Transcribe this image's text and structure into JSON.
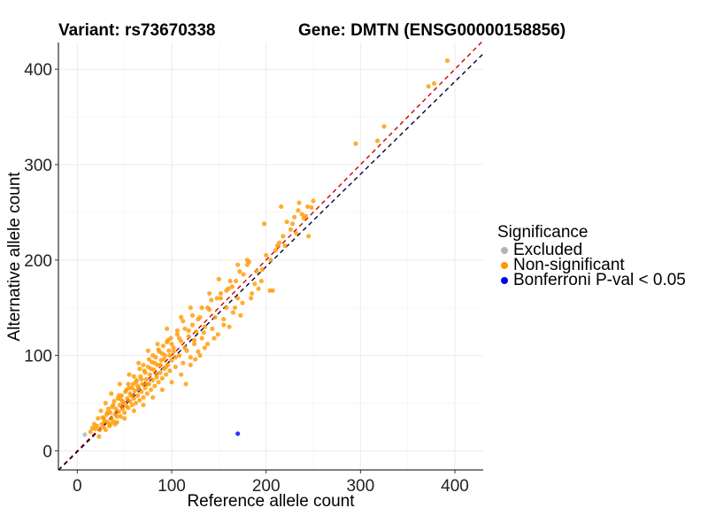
{
  "header": {
    "variant_title": "Variant: rs73670338",
    "gene_title": "Gene: DMTN (ENSG00000158856)"
  },
  "legend": {
    "title": "Significance",
    "items": [
      {
        "label": "Excluded",
        "color": "#b3b3b3"
      },
      {
        "label": "Non-significant",
        "color": "#ff9900"
      },
      {
        "label": "Bonferroni P-val < 0.05",
        "color": "#0000ff"
      }
    ]
  },
  "chart_data": {
    "type": "scatter",
    "xlabel": "Reference allele count",
    "ylabel": "Alternative allele count",
    "xlim": [
      -20,
      430
    ],
    "ylim": [
      -20,
      428
    ],
    "xticks": [
      "0",
      "100",
      "200",
      "300",
      "400"
    ],
    "yticks": [
      "0",
      "100",
      "200",
      "300",
      "400"
    ],
    "grid": true,
    "reference_lines": [
      {
        "name": "identity (y = x)",
        "color": "#cc0000",
        "style": "dashed",
        "slope": 1.0,
        "intercept": 0
      },
      {
        "name": "fitted",
        "color": "#000033",
        "style": "dashed",
        "slope": 0.97,
        "intercept": -1
      }
    ],
    "series": [
      {
        "name": "Excluded",
        "color": "#b3b3b3",
        "points": [
          [
            8,
            17
          ]
        ]
      },
      {
        "name": "Bonferroni P-val < 0.05",
        "color": "#0000ff",
        "points": [
          [
            170,
            18
          ]
        ]
      },
      {
        "name": "Non-significant",
        "color": "#ff9900",
        "points": [
          [
            14,
            20
          ],
          [
            16,
            24
          ],
          [
            19,
            23
          ],
          [
            21,
            26
          ],
          [
            23,
            15
          ],
          [
            24,
            22
          ],
          [
            26,
            28
          ],
          [
            27,
            35
          ],
          [
            28,
            25
          ],
          [
            29,
            31
          ],
          [
            30,
            22
          ],
          [
            31,
            38
          ],
          [
            32,
            30
          ],
          [
            33,
            44
          ],
          [
            34,
            26
          ],
          [
            35,
            40
          ],
          [
            36,
            34
          ],
          [
            37,
            46
          ],
          [
            38,
            31
          ],
          [
            39,
            52
          ],
          [
            40,
            38
          ],
          [
            41,
            44
          ],
          [
            42,
            30
          ],
          [
            43,
            55
          ],
          [
            44,
            41
          ],
          [
            45,
            48
          ],
          [
            46,
            36
          ],
          [
            47,
            58
          ],
          [
            48,
            44
          ],
          [
            49,
            50
          ],
          [
            50,
            40
          ],
          [
            51,
            62
          ],
          [
            52,
            47
          ],
          [
            53,
            55
          ],
          [
            54,
            45
          ],
          [
            55,
            66
          ],
          [
            56,
            52
          ],
          [
            57,
            58
          ],
          [
            58,
            48
          ],
          [
            59,
            70
          ],
          [
            60,
            55
          ],
          [
            61,
            63
          ],
          [
            62,
            50
          ],
          [
            63,
            74
          ],
          [
            64,
            58
          ],
          [
            65,
            66
          ],
          [
            66,
            53
          ],
          [
            67,
            78
          ],
          [
            68,
            62
          ],
          [
            69,
            70
          ],
          [
            70,
            56
          ],
          [
            71,
            84
          ],
          [
            72,
            66
          ],
          [
            73,
            75
          ],
          [
            74,
            60
          ],
          [
            75,
            88
          ],
          [
            76,
            70
          ],
          [
            77,
            80
          ],
          [
            78,
            64
          ],
          [
            79,
            93
          ],
          [
            80,
            74
          ],
          [
            81,
            85
          ],
          [
            82,
            68
          ],
          [
            83,
            98
          ],
          [
            84,
            77
          ],
          [
            85,
            90
          ],
          [
            86,
            72
          ],
          [
            87,
            104
          ],
          [
            88,
            82
          ],
          [
            89,
            95
          ],
          [
            90,
            76
          ],
          [
            91,
            110
          ],
          [
            92,
            86
          ],
          [
            93,
            100
          ],
          [
            94,
            80
          ],
          [
            95,
            114
          ],
          [
            96,
            90
          ],
          [
            97,
            105
          ],
          [
            98,
            84
          ],
          [
            99,
            118
          ],
          [
            100,
            95
          ],
          [
            102,
            108
          ],
          [
            104,
            88
          ],
          [
            106,
            122
          ],
          [
            108,
            100
          ],
          [
            110,
            115
          ],
          [
            112,
            92
          ],
          [
            114,
            128
          ],
          [
            116,
            105
          ],
          [
            118,
            120
          ],
          [
            120,
            98
          ],
          [
            122,
            132
          ],
          [
            124,
            112
          ],
          [
            126,
            125
          ],
          [
            128,
            104
          ],
          [
            130,
            140
          ],
          [
            132,
            118
          ],
          [
            135,
            130
          ],
          [
            138,
            112
          ],
          [
            140,
            148
          ],
          [
            143,
            128
          ],
          [
            146,
            140
          ],
          [
            149,
            122
          ],
          [
            152,
            160
          ],
          [
            155,
            138
          ],
          [
            158,
            150
          ],
          [
            161,
            130
          ],
          [
            164,
            172
          ],
          [
            167,
            150
          ],
          [
            170,
            160
          ],
          [
            173,
            142
          ],
          [
            176,
            185
          ],
          [
            180,
            195
          ],
          [
            184,
            160
          ],
          [
            188,
            175
          ],
          [
            192,
            170
          ],
          [
            196,
            190
          ],
          [
            200,
            205
          ],
          [
            204,
            168
          ],
          [
            207,
            168
          ],
          [
            210,
            210
          ],
          [
            214,
            218
          ],
          [
            218,
            225
          ],
          [
            222,
            240
          ],
          [
            226,
            232
          ],
          [
            230,
            245
          ],
          [
            234,
            252
          ],
          [
            238,
            248
          ],
          [
            242,
            246
          ],
          [
            245,
            225
          ],
          [
            250,
            262
          ],
          [
            198,
            238
          ],
          [
            216,
            256
          ],
          [
            235,
            260
          ],
          [
            140,
            165
          ],
          [
            150,
            180
          ],
          [
            120,
            150
          ],
          [
            110,
            140
          ],
          [
            95,
            128
          ],
          [
            85,
            112
          ],
          [
            75,
            105
          ],
          [
            65,
            92
          ],
          [
            55,
            80
          ],
          [
            45,
            70
          ],
          [
            36,
            60
          ],
          [
            30,
            50
          ],
          [
            25,
            42
          ],
          [
            22,
            34
          ],
          [
            18,
            28
          ],
          [
            40,
            28
          ],
          [
            50,
            34
          ],
          [
            60,
            42
          ],
          [
            70,
            48
          ],
          [
            80,
            56
          ],
          [
            90,
            64
          ],
          [
            100,
            72
          ],
          [
            110,
            80
          ],
          [
            120,
            90
          ],
          [
            130,
            100
          ],
          [
            115,
            70
          ],
          [
            125,
            96
          ],
          [
            135,
            108
          ],
          [
            145,
            118
          ],
          [
            155,
            132
          ],
          [
            165,
            145
          ],
          [
            175,
            155
          ],
          [
            185,
            165
          ],
          [
            195,
            178
          ],
          [
            160,
            170
          ],
          [
            180,
            200
          ],
          [
            170,
            195
          ],
          [
            190,
            188
          ],
          [
            205,
            200
          ],
          [
            212,
            215
          ],
          [
            220,
            215
          ],
          [
            228,
            238
          ],
          [
            232,
            228
          ],
          [
            240,
            244
          ],
          [
            244,
            256
          ],
          [
            248,
            255
          ],
          [
            295,
            322
          ],
          [
            318,
            325
          ],
          [
            325,
            340
          ],
          [
            372,
            382
          ],
          [
            378,
            385
          ],
          [
            392,
            409
          ],
          [
            60,
            78
          ],
          [
            70,
            90
          ],
          [
            80,
            100
          ],
          [
            90,
            102
          ],
          [
            100,
            112
          ],
          [
            58,
            66
          ],
          [
            68,
            75
          ],
          [
            78,
            86
          ],
          [
            88,
            90
          ],
          [
            98,
            100
          ],
          [
            44,
            58
          ],
          [
            52,
            64
          ],
          [
            62,
            72
          ],
          [
            72,
            82
          ],
          [
            82,
            92
          ],
          [
            92,
            96
          ],
          [
            102,
            104
          ],
          [
            108,
            118
          ],
          [
            118,
            126
          ],
          [
            128,
            138
          ],
          [
            138,
            150
          ],
          [
            148,
            160
          ],
          [
            158,
            168
          ],
          [
            168,
            178
          ],
          [
            48,
            52
          ],
          [
            56,
            60
          ],
          [
            64,
            68
          ],
          [
            74,
            70
          ],
          [
            84,
            80
          ],
          [
            94,
            88
          ],
          [
            104,
            98
          ],
          [
            114,
            108
          ],
          [
            124,
            116
          ],
          [
            134,
            124
          ],
          [
            38,
            48
          ],
          [
            42,
            36
          ],
          [
            46,
            54
          ],
          [
            54,
            70
          ],
          [
            66,
            86
          ],
          [
            76,
            96
          ],
          [
            86,
            106
          ],
          [
            96,
            116
          ],
          [
            106,
            126
          ],
          [
            112,
            136
          ],
          [
            122,
            142
          ],
          [
            132,
            150
          ],
          [
            142,
            158
          ],
          [
            152,
            165
          ],
          [
            162,
            178
          ],
          [
            172,
            188
          ],
          [
            182,
            198
          ],
          [
            32,
            40
          ],
          [
            28,
            34
          ],
          [
            35,
            28
          ]
        ]
      }
    ]
  }
}
